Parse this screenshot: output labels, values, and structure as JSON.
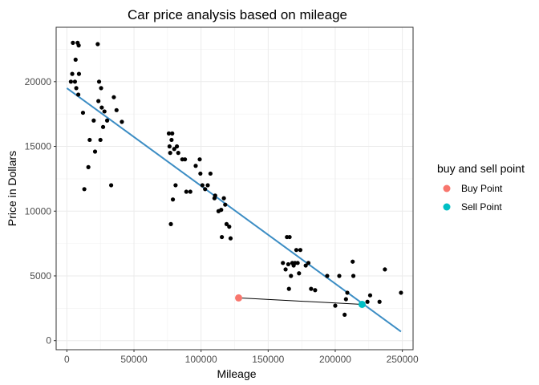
{
  "chart_data": {
    "type": "scatter",
    "title": "Car price analysis based on mileage",
    "xlabel": "Mileage",
    "ylabel": "Price in Dollars",
    "xlim": [
      -8000,
      258000
    ],
    "ylim": [
      -700,
      24200
    ],
    "xticks": [
      0,
      50000,
      100000,
      150000,
      200000,
      250000
    ],
    "yticks": [
      0,
      5000,
      10000,
      15000,
      20000
    ],
    "grid": true,
    "legend_position": "right",
    "legend_title": "buy and sell point",
    "points": [
      [
        3000,
        20000
      ],
      [
        4000,
        20600
      ],
      [
        4500,
        23000
      ],
      [
        6000,
        20000
      ],
      [
        6500,
        21700
      ],
      [
        7000,
        19500
      ],
      [
        8000,
        23000
      ],
      [
        8500,
        19000
      ],
      [
        9000,
        20600
      ],
      [
        8800,
        22800
      ],
      [
        12000,
        17600
      ],
      [
        13000,
        11700
      ],
      [
        16000,
        13400
      ],
      [
        17000,
        15500
      ],
      [
        21000,
        14600
      ],
      [
        20000,
        17000
      ],
      [
        23000,
        22900
      ],
      [
        23500,
        18500
      ],
      [
        24000,
        20000
      ],
      [
        25000,
        15500
      ],
      [
        25500,
        19500
      ],
      [
        26000,
        18000
      ],
      [
        27000,
        16500
      ],
      [
        28000,
        17700
      ],
      [
        30000,
        17000
      ],
      [
        33000,
        12000
      ],
      [
        35000,
        18800
      ],
      [
        37000,
        17800
      ],
      [
        41000,
        16900
      ],
      [
        76000,
        16000
      ],
      [
        76500,
        15000
      ],
      [
        77000,
        14500
      ],
      [
        77500,
        9000
      ],
      [
        78000,
        15500
      ],
      [
        78500,
        16000
      ],
      [
        79000,
        10900
      ],
      [
        80000,
        14800
      ],
      [
        81000,
        12000
      ],
      [
        82000,
        15000
      ],
      [
        83000,
        14500
      ],
      [
        86000,
        14000
      ],
      [
        88000,
        14000
      ],
      [
        89000,
        11500
      ],
      [
        92000,
        11500
      ],
      [
        96000,
        13500
      ],
      [
        99000,
        14000
      ],
      [
        99500,
        12900
      ],
      [
        101000,
        12000
      ],
      [
        103000,
        11700
      ],
      [
        105000,
        12000
      ],
      [
        107000,
        12900
      ],
      [
        110000,
        11000
      ],
      [
        110500,
        11200
      ],
      [
        113000,
        10000
      ],
      [
        115000,
        10100
      ],
      [
        115500,
        8000
      ],
      [
        117000,
        11000
      ],
      [
        118000,
        10500
      ],
      [
        119000,
        9000
      ],
      [
        121000,
        8800
      ],
      [
        122000,
        7900
      ],
      [
        161000,
        6000
      ],
      [
        163000,
        5500
      ],
      [
        164000,
        8000
      ],
      [
        165000,
        5900
      ],
      [
        165500,
        4000
      ],
      [
        166000,
        8000
      ],
      [
        167000,
        5000
      ],
      [
        168000,
        6000
      ],
      [
        169000,
        5800
      ],
      [
        170000,
        6000
      ],
      [
        171000,
        7000
      ],
      [
        172000,
        6000
      ],
      [
        173000,
        5200
      ],
      [
        174000,
        7000
      ],
      [
        178000,
        5800
      ],
      [
        180000,
        6000
      ],
      [
        182000,
        4000
      ],
      [
        185000,
        3900
      ],
      [
        194000,
        5000
      ],
      [
        200000,
        2700
      ],
      [
        203000,
        5000
      ],
      [
        207000,
        2000
      ],
      [
        208000,
        3200
      ],
      [
        209000,
        3700
      ],
      [
        213000,
        6100
      ],
      [
        213500,
        5000
      ],
      [
        224000,
        3000
      ],
      [
        226000,
        3500
      ],
      [
        233000,
        3000
      ],
      [
        237000,
        5500
      ],
      [
        249000,
        3700
      ]
    ],
    "trend_line": {
      "x": [
        0,
        249000
      ],
      "y": [
        19500,
        700
      ]
    },
    "series": [
      {
        "name": "Buy Point",
        "color": "#f8766d",
        "x": 128000,
        "y": 3300
      },
      {
        "name": "Sell Point",
        "color": "#00bfc4",
        "x": 220000,
        "y": 2800
      }
    ],
    "connector": {
      "x": [
        128000,
        220000
      ],
      "y": [
        3300,
        2800
      ]
    },
    "colors": {
      "points": "#000000",
      "trend": "#3c8dc4",
      "connector": "#000000"
    }
  }
}
